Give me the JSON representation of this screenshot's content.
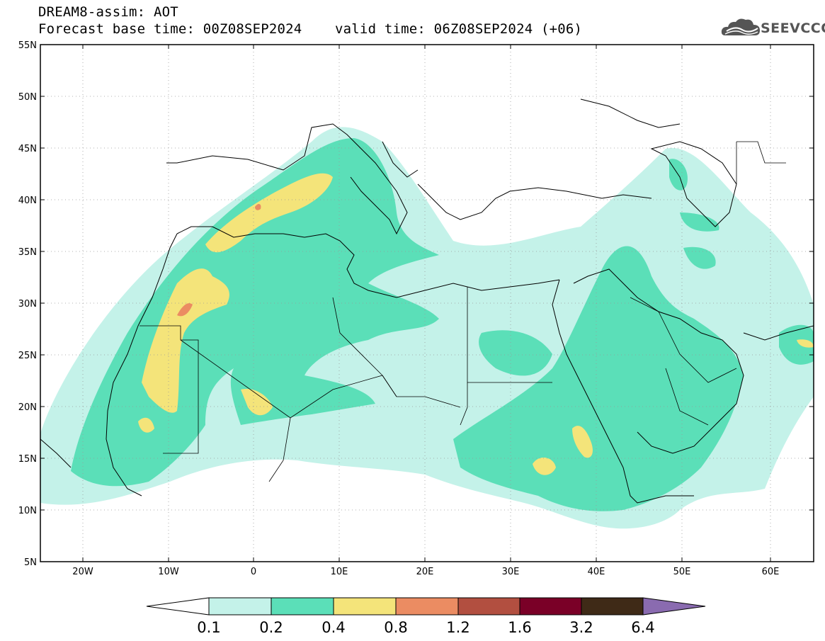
{
  "title": {
    "line1": "DREAM8-assim: AOT",
    "base_time": "Forecast base time: 00Z08SEP2024",
    "valid_time": "valid time: 06Z08SEP2024 (+06)"
  },
  "logo": {
    "text": "SEEVCCC",
    "icon": "cloud-icon"
  },
  "map": {
    "lat_ticks": [
      "55N",
      "50N",
      "45N",
      "40N",
      "35N",
      "30N",
      "25N",
      "20N",
      "15N",
      "10N",
      "5N"
    ],
    "lon_ticks": [
      "20W",
      "10W",
      "0",
      "10E",
      "20E",
      "30E",
      "40E",
      "50E",
      "60E"
    ],
    "lat_range": [
      5,
      55
    ],
    "lon_range": [
      -25,
      65
    ]
  },
  "legend": {
    "labels": [
      "0.1",
      "0.2",
      "0.4",
      "0.8",
      "1.2",
      "1.6",
      "3.2",
      "6.4"
    ],
    "colors": [
      "#ffffff",
      "#c4f2e9",
      "#5bdfb8",
      "#f4e47a",
      "#eb8c62",
      "#b24f40",
      "#7a0027",
      "#3f2a17",
      "#8a6bb0"
    ]
  }
}
